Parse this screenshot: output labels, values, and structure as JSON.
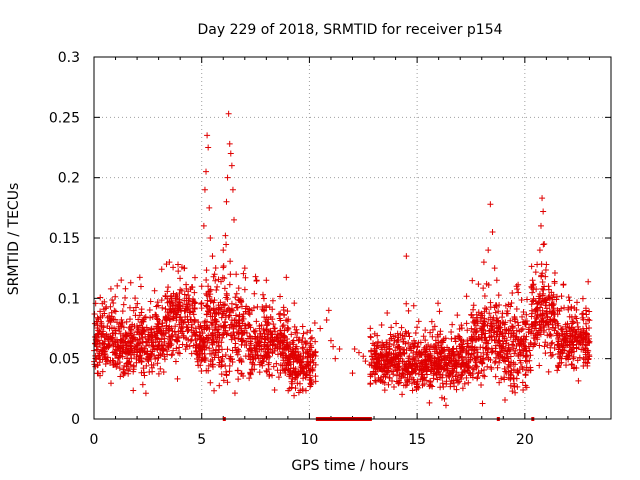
{
  "chart_data": {
    "type": "scatter",
    "title": "Day 229 of 2018, SRMTID for receiver p154",
    "xlabel": "GPS time / hours",
    "ylabel": "SRMTID / TECUs",
    "xlim": [
      0,
      24
    ],
    "ylim": [
      0,
      0.3
    ],
    "x_ticks": [
      0,
      5,
      10,
      15,
      20
    ],
    "x_tick_labels": [
      "0",
      "5",
      "10",
      "15",
      "20"
    ],
    "y_ticks": [
      0,
      0.05,
      0.1,
      0.15,
      0.2,
      0.25,
      0.3
    ],
    "y_tick_labels": [
      "0",
      "0.05",
      "0.1",
      "0.15",
      "0.2",
      "0.25",
      "0.3"
    ],
    "grid": true,
    "marker": "plus",
    "color": "#e00000",
    "series": [
      {
        "name": "SRMTID",
        "profile": [
          {
            "from": 0.0,
            "to": 1.0,
            "center": 0.065,
            "spread": 0.025
          },
          {
            "from": 1.0,
            "to": 3.3,
            "center": 0.063,
            "spread": 0.025
          },
          {
            "from": 3.3,
            "to": 4.7,
            "center": 0.082,
            "spread": 0.028
          },
          {
            "from": 4.7,
            "to": 5.2,
            "center": 0.062,
            "spread": 0.02
          },
          {
            "from": 5.2,
            "to": 7.2,
            "center": 0.075,
            "spread": 0.035
          },
          {
            "from": 7.2,
            "to": 9.0,
            "center": 0.062,
            "spread": 0.025
          },
          {
            "from": 9.0,
            "to": 10.3,
            "center": 0.047,
            "spread": 0.02
          },
          {
            "from": 12.8,
            "to": 14.5,
            "center": 0.05,
            "spread": 0.022
          },
          {
            "from": 14.5,
            "to": 17.5,
            "center": 0.048,
            "spread": 0.022
          },
          {
            "from": 17.5,
            "to": 18.8,
            "center": 0.065,
            "spread": 0.03
          },
          {
            "from": 18.8,
            "to": 20.3,
            "center": 0.06,
            "spread": 0.03
          },
          {
            "from": 20.3,
            "to": 21.5,
            "center": 0.085,
            "spread": 0.03
          },
          {
            "from": 21.5,
            "to": 23.0,
            "center": 0.065,
            "spread": 0.022
          }
        ],
        "sparse_points": [
          {
            "x": 10.5,
            "y": 0.075
          },
          {
            "x": 10.8,
            "y": 0.082
          },
          {
            "x": 10.9,
            "y": 0.09
          },
          {
            "x": 11.0,
            "y": 0.065
          },
          {
            "x": 11.1,
            "y": 0.06
          },
          {
            "x": 11.2,
            "y": 0.05
          },
          {
            "x": 11.4,
            "y": 0.058
          },
          {
            "x": 12.0,
            "y": 0.038
          },
          {
            "x": 12.1,
            "y": 0.058
          },
          {
            "x": 12.3,
            "y": 0.055
          },
          {
            "x": 12.5,
            "y": 0.052
          },
          {
            "x": 12.6,
            "y": 0.048
          },
          {
            "x": 12.8,
            "y": 0.045
          }
        ],
        "peaks": [
          {
            "x": 5.25,
            "y": 0.235
          },
          {
            "x": 5.3,
            "y": 0.225
          },
          {
            "x": 5.2,
            "y": 0.205
          },
          {
            "x": 5.15,
            "y": 0.19
          },
          {
            "x": 5.35,
            "y": 0.175
          },
          {
            "x": 5.1,
            "y": 0.16
          },
          {
            "x": 5.4,
            "y": 0.15
          },
          {
            "x": 6.25,
            "y": 0.253
          },
          {
            "x": 6.3,
            "y": 0.228
          },
          {
            "x": 6.35,
            "y": 0.22
          },
          {
            "x": 6.4,
            "y": 0.21
          },
          {
            "x": 6.2,
            "y": 0.2
          },
          {
            "x": 6.45,
            "y": 0.19
          },
          {
            "x": 6.15,
            "y": 0.18
          },
          {
            "x": 6.5,
            "y": 0.165
          },
          {
            "x": 6.1,
            "y": 0.152
          },
          {
            "x": 6.0,
            "y": 0.14
          },
          {
            "x": 5.5,
            "y": 0.135
          },
          {
            "x": 5.6,
            "y": 0.12
          },
          {
            "x": 3.5,
            "y": 0.13
          },
          {
            "x": 3.9,
            "y": 0.128
          },
          {
            "x": 4.2,
            "y": 0.125
          },
          {
            "x": 14.5,
            "y": 0.135
          },
          {
            "x": 18.4,
            "y": 0.178
          },
          {
            "x": 18.5,
            "y": 0.155
          },
          {
            "x": 18.3,
            "y": 0.14
          },
          {
            "x": 18.6,
            "y": 0.125
          },
          {
            "x": 18.1,
            "y": 0.13
          },
          {
            "x": 18.7,
            "y": 0.115
          },
          {
            "x": 20.8,
            "y": 0.183
          },
          {
            "x": 20.85,
            "y": 0.172
          },
          {
            "x": 20.75,
            "y": 0.16
          },
          {
            "x": 20.9,
            "y": 0.145
          },
          {
            "x": 20.7,
            "y": 0.14
          },
          {
            "x": 21.0,
            "y": 0.128
          },
          {
            "x": 20.95,
            "y": 0.118
          },
          {
            "x": 21.1,
            "y": 0.11
          },
          {
            "x": 7.0,
            "y": 0.125
          },
          {
            "x": 7.5,
            "y": 0.118
          },
          {
            "x": 8.0,
            "y": 0.115
          },
          {
            "x": 5.0,
            "y": 0.11
          },
          {
            "x": 5.3,
            "y": 0.04
          },
          {
            "x": 5.4,
            "y": 0.03
          },
          {
            "x": 5.5,
            "y": 0.045
          }
        ],
        "zero_ranges": [
          [
            5.98,
            6.05
          ],
          [
            10.3,
            12.9
          ],
          [
            18.7,
            18.8
          ],
          [
            20.3,
            20.35
          ]
        ]
      }
    ]
  }
}
